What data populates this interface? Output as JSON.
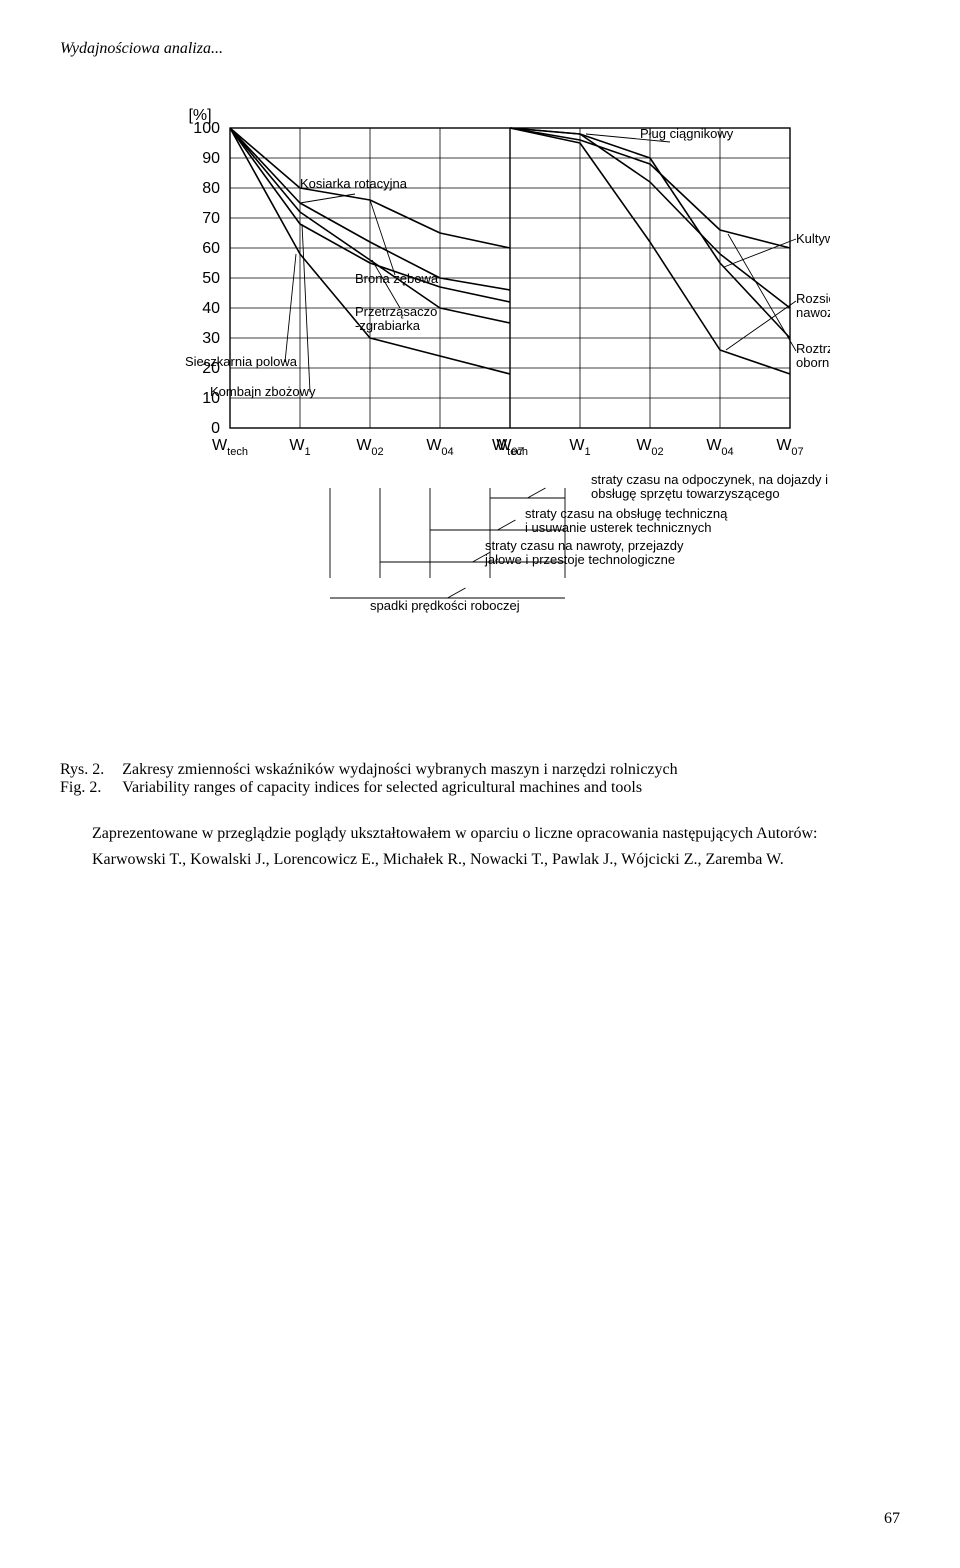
{
  "running_head": "Wydajnościowa analiza...",
  "chart": {
    "y_label": "[%]",
    "y_ticks": [
      "100",
      "90",
      "80",
      "70",
      "60",
      "50",
      "40",
      "30",
      "20",
      "10",
      "0"
    ],
    "axis_groups": {
      "left": [
        "W",
        "W",
        "W",
        "W",
        "W"
      ],
      "left_sub": [
        "tech",
        "1",
        "02",
        "04",
        "07"
      ],
      "right": [
        "W",
        "W",
        "W",
        "W",
        "W"
      ],
      "right_sub": [
        "tech",
        "1",
        "02",
        "04",
        "07"
      ]
    },
    "labels": {
      "kosiarka": "Kosiarka rotacyjna",
      "brona": "Brona zębowa",
      "przetrz": "Przetrząsaczo\n-zgrabiarka",
      "sieczk": "Sieczkarnia polowa",
      "kombajn": "Kombajn zbożowy",
      "plug": "Pług ciągnikowy",
      "kultywator": "Kultywator",
      "rozsiewacz": "Rozsiewacz\nnawozów",
      "roztrz": "Roztrząsacz\nobornika"
    },
    "series_left_x": [
      0,
      1,
      2,
      3,
      4
    ],
    "kosiarka_vals": [
      100,
      75,
      62,
      50,
      46
    ],
    "brona_vals": [
      100,
      80,
      76,
      65,
      60
    ],
    "przetrz_vals": [
      100,
      72,
      56,
      40,
      35
    ],
    "sieczk_vals": [
      100,
      58,
      30,
      24,
      18
    ],
    "kombajn_vals": [
      100,
      68,
      55,
      47,
      42
    ],
    "series_right_x": [
      0,
      1,
      2,
      3,
      4
    ],
    "plug_vals": [
      100,
      98,
      82,
      58,
      40
    ],
    "kultywator_vals": [
      100,
      98,
      90,
      55,
      30
    ],
    "rozsiewacz_vals": [
      100,
      95,
      62,
      26,
      18
    ],
    "roztrz_vals": [
      100,
      96,
      88,
      66,
      60
    ],
    "colors": {
      "line": "#000000",
      "grid": "#000000",
      "bg": "#ffffff"
    },
    "line_width_grid": 0.8,
    "line_width_series": 1.6
  },
  "legend_tree": {
    "l1": "straty czasu na odpoczynek, na dojazdy i\nobsługę sprzętu towarzyszącego",
    "l2": "straty czasu na obsługę techniczną\ni usuwanie usterek technicznych",
    "l3": "straty czasu na nawroty, przejazdy\njałowe i przestoje technologiczne",
    "l4": "spadki prędkości roboczej"
  },
  "captions": {
    "rys_label": "Rys. 2.",
    "rys_text": "Zakresy zmienności wskaźników wydajności wybranych maszyn i narzędzi rolniczych",
    "fig_label": "Fig. 2.",
    "fig_text": "Variability ranges of capacity indices for selected agricultural machines and tools"
  },
  "body": {
    "p1": "Zaprezentowane w przeglądzie poglądy ukształtowałem w oparciu o liczne opracowania następujących Autorów:",
    "p2": "Karwowski T., Kowalski J., Lorencowicz E., Michałek R., Nowacki T., Pawlak J., Wójcicki Z., Zaremba W."
  },
  "page_number": "67"
}
